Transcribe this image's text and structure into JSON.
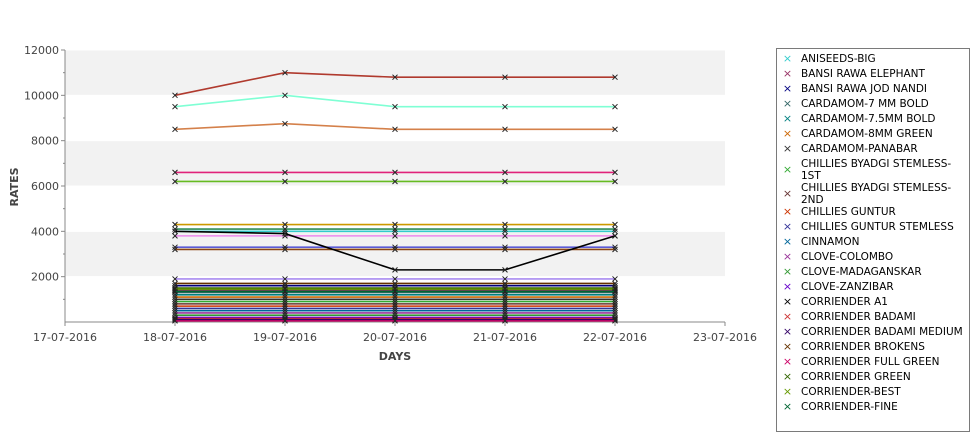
{
  "chart_data": {
    "type": "line",
    "xlabel": "DAYS",
    "ylabel": "RATES",
    "x_ticks": [
      "17-07-2016",
      "18-07-2016",
      "19-07-2016",
      "20-07-2016",
      "21-07-2016",
      "22-07-2016",
      "23-07-2016"
    ],
    "x": [
      "18-07-2016",
      "19-07-2016",
      "20-07-2016",
      "21-07-2016",
      "22-07-2016"
    ],
    "ylim": [
      0,
      12000
    ],
    "y_ticks": [
      2000,
      4000,
      6000,
      8000,
      10000,
      12000
    ],
    "grid": true,
    "legend_position": "right",
    "series": [
      {
        "name": "ANISEEDS-BIG",
        "color": "#33cccc",
        "values": [
          4000,
          4000,
          4000,
          4000,
          4000
        ]
      },
      {
        "name": "BANSI RAWA ELEPHANT",
        "color": "#993366",
        "values": [
          1400,
          1400,
          1400,
          1400,
          1400
        ]
      },
      {
        "name": "BANSI RAWA JOD NANDI",
        "color": "#000080",
        "values": [
          1600,
          1600,
          1600,
          1600,
          1600
        ]
      },
      {
        "name": "CARDAMOM-7 MM BOLD",
        "color": "#336666",
        "values": [
          1300,
          1300,
          1300,
          1300,
          1300
        ]
      },
      {
        "name": "CARDAMOM-7.5MM BOLD",
        "color": "#008080",
        "values": [
          1200,
          1200,
          1200,
          1200,
          1200
        ]
      },
      {
        "name": "CARDAMOM-8MM GREEN",
        "color": "#cc6600",
        "values": [
          1100,
          1100,
          1100,
          1100,
          1100
        ]
      },
      {
        "name": "CARDAMOM-PANABAR",
        "color": "#333333",
        "values": [
          1000,
          1000,
          1000,
          1000,
          1000
        ]
      },
      {
        "name": "CHILLIES BYADGI STEMLESS-1ST",
        "color": "#33aa33",
        "values": [
          900,
          900,
          900,
          900,
          900
        ]
      },
      {
        "name": "CHILLIES BYADGI STEMLESS-2ND",
        "color": "#663333",
        "values": [
          800,
          800,
          800,
          800,
          800
        ]
      },
      {
        "name": "CHILLIES GUNTUR",
        "color": "#cc3300",
        "values": [
          700,
          700,
          700,
          700,
          700
        ]
      },
      {
        "name": "CHILLIES GUNTUR STEMLESS",
        "color": "#333399",
        "values": [
          600,
          600,
          600,
          600,
          600
        ]
      },
      {
        "name": "CINNAMON",
        "color": "#006699",
        "values": [
          500,
          500,
          500,
          500,
          500
        ]
      },
      {
        "name": "CLOVE-COLOMBO",
        "color": "#993399",
        "values": [
          400,
          400,
          400,
          400,
          400
        ]
      },
      {
        "name": "CLOVE-MADAGANSKAR",
        "color": "#339933",
        "values": [
          300,
          300,
          300,
          300,
          300
        ]
      },
      {
        "name": "CLOVE-ZANZIBAR",
        "color": "#6600cc",
        "values": [
          200,
          200,
          200,
          200,
          200
        ]
      },
      {
        "name": "CORRIENDER A1",
        "color": "#000000",
        "values": [
          4000,
          3900,
          2300,
          2300,
          3800
        ]
      },
      {
        "name": "CORRIENDER BADAMI",
        "color": "#cc3333",
        "values": [
          150,
          150,
          150,
          150,
          150
        ]
      },
      {
        "name": "CORRIENDER BADAMI MEDIUM",
        "color": "#330066",
        "values": [
          100,
          100,
          100,
          100,
          100
        ]
      },
      {
        "name": "CORRIENDER BROKENS",
        "color": "#663300",
        "values": [
          1700,
          1700,
          1700,
          1700,
          1700
        ]
      },
      {
        "name": "CORRIENDER FULL GREEN",
        "color": "#cc0066",
        "values": [
          50,
          50,
          50,
          50,
          50
        ]
      },
      {
        "name": "CORRIENDER GREEN",
        "color": "#336600",
        "values": [
          1500,
          1500,
          1500,
          1500,
          1500
        ]
      },
      {
        "name": "CORRIENDER-BEST",
        "color": "#669900",
        "values": [
          1450,
          1450,
          1450,
          1450,
          1450
        ]
      },
      {
        "name": "CORRIENDER-FINE",
        "color": "#006633",
        "values": [
          1350,
          1350,
          1350,
          1350,
          1350
        ]
      },
      {
        "name": "",
        "color": "#b03a2e",
        "values": [
          10000,
          11000,
          10800,
          10800,
          10800
        ]
      },
      {
        "name": "",
        "color": "#7fffd4",
        "values": [
          9500,
          10000,
          9500,
          9500,
          9500
        ]
      },
      {
        "name": "",
        "color": "#d4804a",
        "values": [
          8500,
          8750,
          8500,
          8500,
          8500
        ]
      },
      {
        "name": "",
        "color": "#e0227a",
        "values": [
          6600,
          6600,
          6600,
          6600,
          6600
        ]
      },
      {
        "name": "",
        "color": "#66bb22",
        "values": [
          6200,
          6200,
          6200,
          6200,
          6200
        ]
      },
      {
        "name": "",
        "color": "#cc9900",
        "values": [
          4300,
          4300,
          4300,
          4300,
          4300
        ]
      },
      {
        "name": "",
        "color": "#2e8b57",
        "values": [
          4100,
          4100,
          4100,
          4100,
          4100
        ]
      },
      {
        "name": "",
        "color": "#ee88ee",
        "values": [
          3800,
          3800,
          3800,
          3800,
          3800
        ]
      },
      {
        "name": "",
        "color": "#5b5bd6",
        "values": [
          3300,
          3300,
          3300,
          3300,
          3300
        ]
      },
      {
        "name": "",
        "color": "#8b4513",
        "values": [
          3200,
          3200,
          3200,
          3200,
          3200
        ]
      },
      {
        "name": "",
        "color": "#a98bf0",
        "values": [
          1900,
          1900,
          1900,
          1900,
          1900
        ]
      }
    ]
  }
}
